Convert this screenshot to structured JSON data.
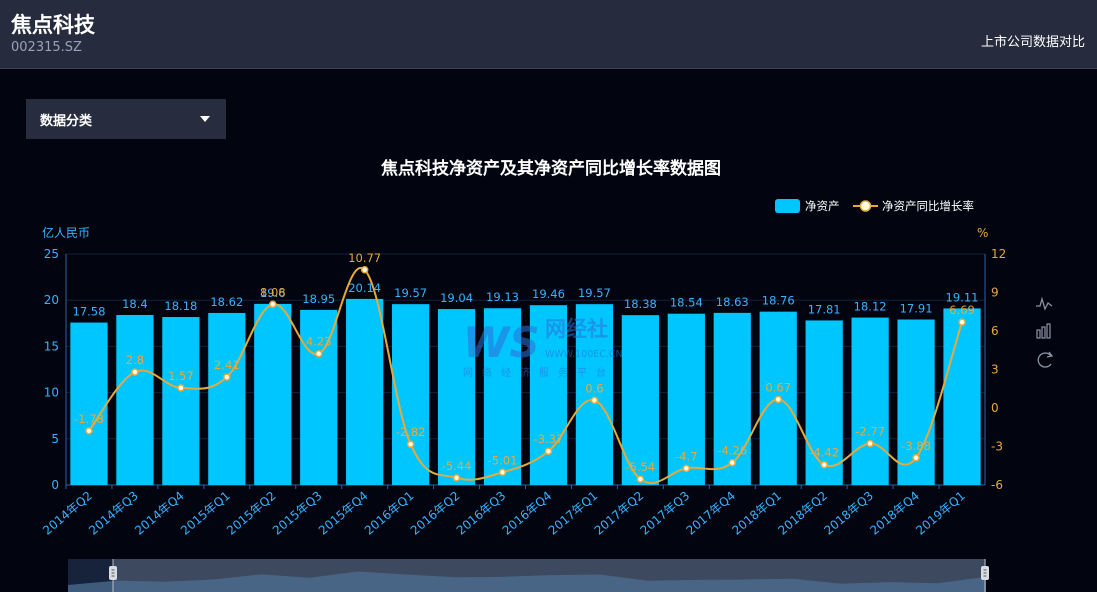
{
  "header": {
    "company": "焦点科技",
    "code": "002315.SZ",
    "compare_link": "上市公司数据对比"
  },
  "dropdown": {
    "label": "数据分类"
  },
  "toolbox": [
    "line-chart-icon",
    "bar-chart-icon",
    "restore-icon"
  ],
  "watermark": {
    "logo": "WS",
    "name": "网经社",
    "url": "WWW.100EC.CN",
    "sub": "网络经济服务平台"
  },
  "chart_data": {
    "type": "bar",
    "title": "焦点科技净资产及其净资产同比增长率数据图",
    "ylabel": "亿人民币",
    "y2label": "%",
    "ylim": [
      0,
      25
    ],
    "y2lim": [
      -6,
      12
    ],
    "yticks": [
      0,
      5,
      10,
      15,
      20,
      25
    ],
    "y2ticks": [
      -6,
      -3,
      0,
      3,
      6,
      9,
      12
    ],
    "legend_position": "top-right",
    "categories": [
      "2014年Q2",
      "2014年Q3",
      "2014年Q4",
      "2015年Q1",
      "2015年Q2",
      "2015年Q3",
      "2015年Q4",
      "2016年Q1",
      "2016年Q2",
      "2016年Q3",
      "2016年Q4",
      "2017年Q1",
      "2017年Q2",
      "2017年Q3",
      "2017年Q4",
      "2018年Q1",
      "2018年Q2",
      "2018年Q3",
      "2018年Q4",
      "2019年Q1"
    ],
    "series": [
      {
        "name": "净资产",
        "type": "bar",
        "axis": "left",
        "color": "#00c6ff",
        "values": [
          17.58,
          18.4,
          18.18,
          18.62,
          19.6,
          18.95,
          20.14,
          19.57,
          19.04,
          19.13,
          19.46,
          19.57,
          18.38,
          18.54,
          18.63,
          18.76,
          17.81,
          18.12,
          17.91,
          19.11
        ],
        "labels": [
          "17.58",
          "18.4",
          "18.18",
          "18.62",
          "19.6",
          "18.95",
          "20.14",
          "19.57",
          "19.04",
          "19.13",
          "19.46",
          "19.57",
          "18.38",
          "18.54",
          "18.63",
          "18.76",
          "17.81",
          "18.12",
          "17.91",
          "19.11"
        ]
      },
      {
        "name": "净资产同比增长率",
        "type": "line",
        "axis": "right",
        "color": "#e8a93a",
        "values": [
          -1.78,
          2.8,
          1.57,
          2.41,
          8.08,
          4.23,
          10.77,
          -2.82,
          -5.44,
          -5.01,
          -3.37,
          0.6,
          -5.54,
          -4.7,
          -4.26,
          0.67,
          -4.42,
          -2.77,
          -3.88,
          6.69
        ],
        "labels": [
          "-1.78",
          "2.8",
          "1.57",
          "2.41",
          "8.08",
          "4.23",
          "10.77",
          "-2.82",
          "-5.44",
          "-5.01",
          "-3.37",
          "0.6",
          "-5.54",
          "-4.7",
          "-4.26",
          "0.67",
          "-4.42",
          "-2.77",
          "-3.88",
          "6.69"
        ]
      }
    ]
  }
}
